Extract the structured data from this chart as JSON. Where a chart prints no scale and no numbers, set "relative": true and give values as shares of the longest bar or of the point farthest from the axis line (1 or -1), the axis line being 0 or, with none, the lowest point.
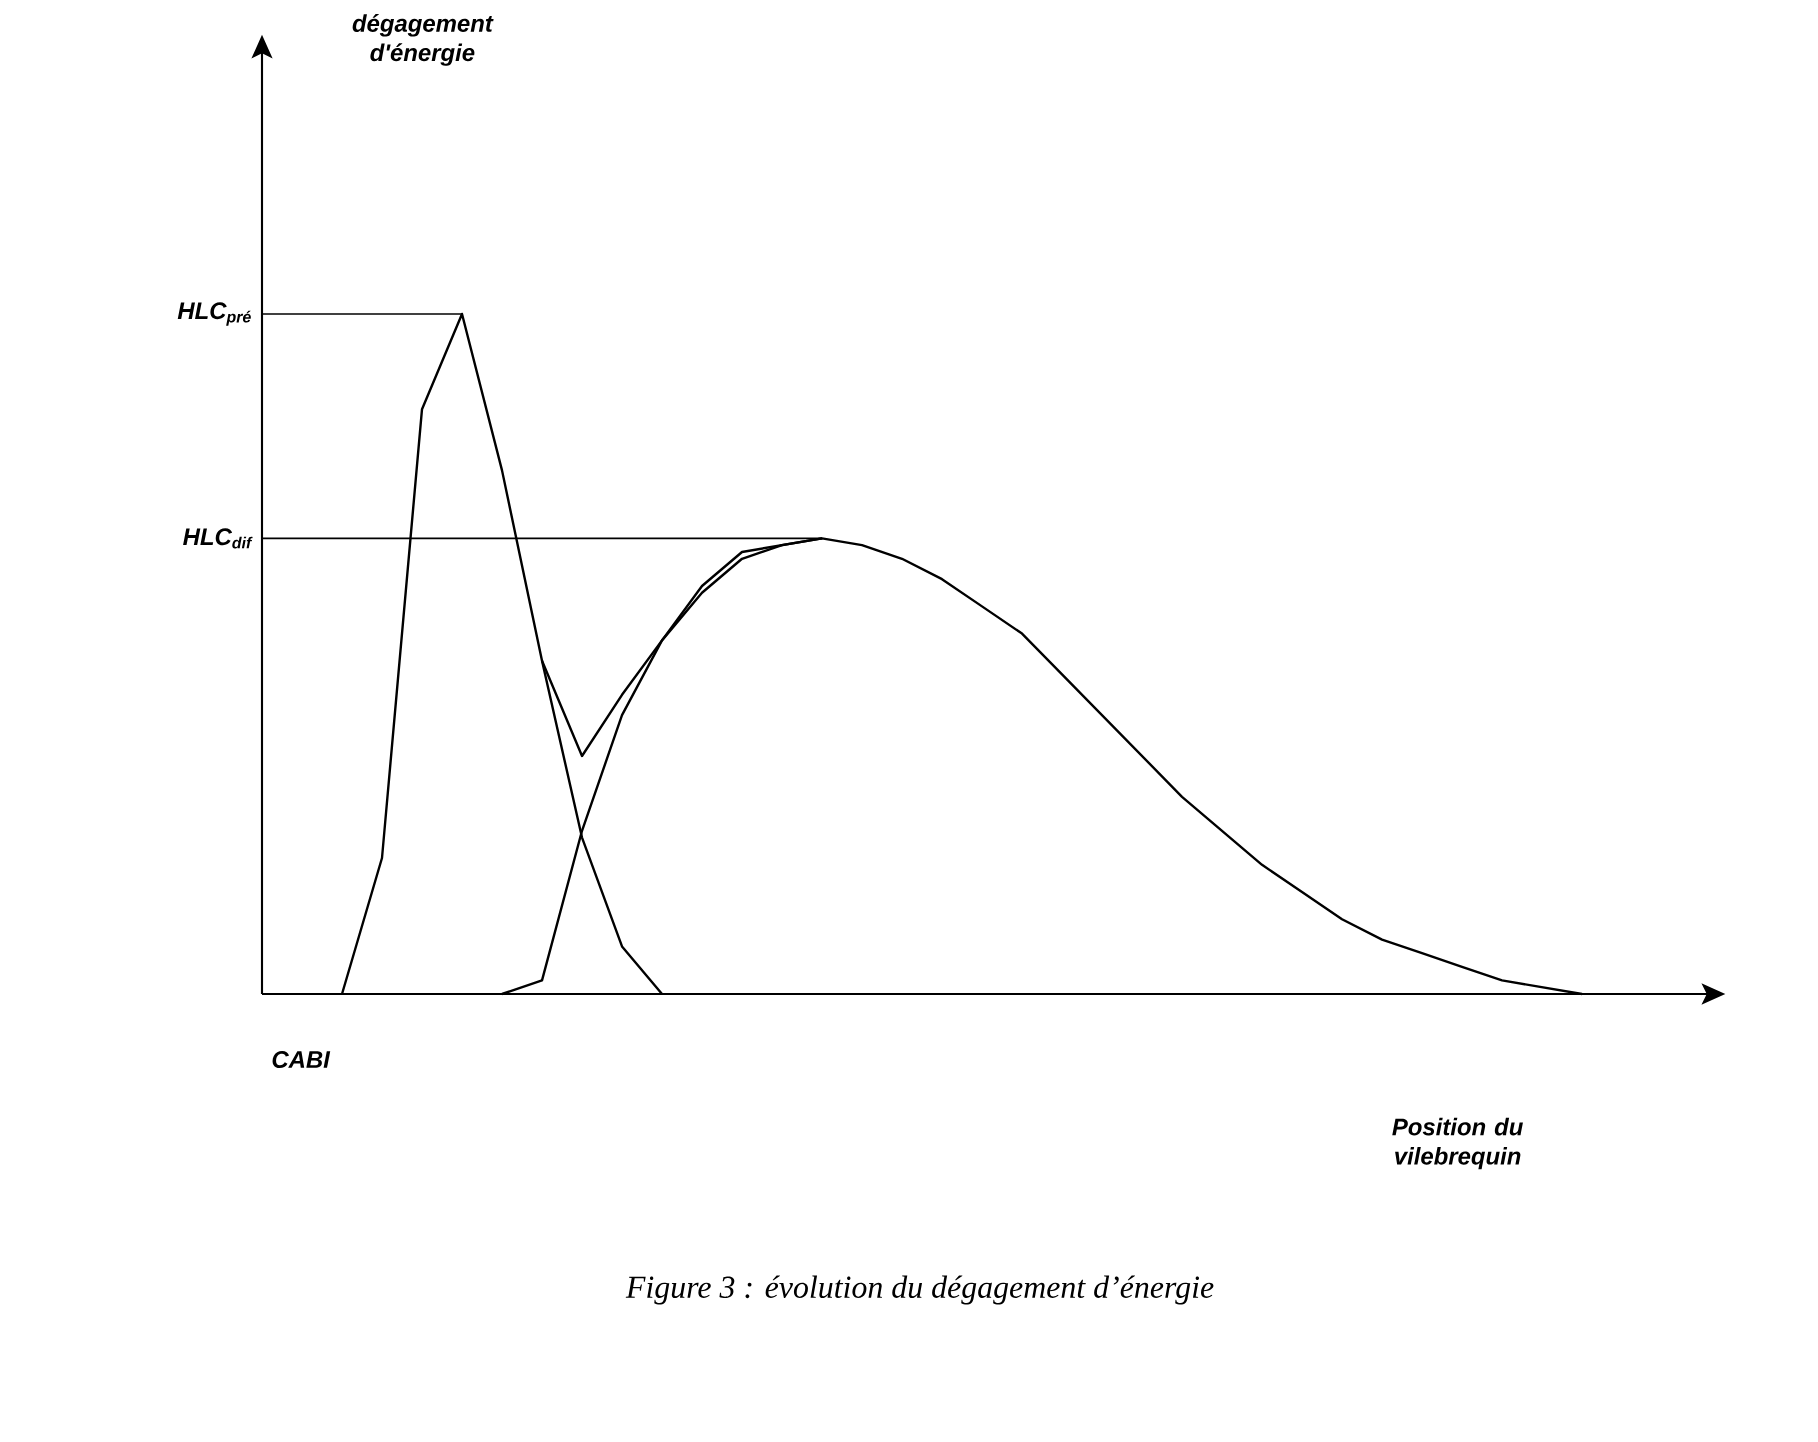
{
  "chart_data": {
    "type": "line",
    "relative": true,
    "annotations": [
      "dégagement d'énergie",
      "CABI",
      "Position du vilebrequin",
      "Figure 3 : évolution du dégagement d’énergie"
    ],
    "categories": [
      null,
      null,
      null,
      null,
      null,
      null,
      null,
      null,
      null,
      null,
      null,
      null,
      null,
      null,
      null,
      null,
      null,
      null,
      null,
      null,
      null,
      null,
      null,
      null,
      null,
      null,
      null,
      null,
      null,
      null,
      null,
      null,
      null,
      null,
      null,
      null
    ],
    "series": [
      {
        "color": "#000000",
        "values": [
          null,
          null,
          0,
          0.2,
          0.86,
          1,
          0.77,
          0.49,
          0.23,
          0.07,
          0,
          null,
          null,
          null,
          null,
          null,
          null,
          null,
          null,
          null,
          null,
          null,
          null,
          null,
          null,
          null,
          null,
          null,
          null,
          null,
          null,
          null,
          null,
          null,
          null,
          null
        ]
      },
      {
        "color": "#000000",
        "values": [
          null,
          null,
          null,
          null,
          null,
          null,
          0,
          0.02,
          0.24,
          0.41,
          0.52,
          0.59,
          0.64,
          0.66,
          0.67,
          0.66,
          0.64,
          0.61,
          0.57,
          0.53,
          0.47,
          0.41,
          0.35,
          0.29,
          0.24,
          0.19,
          0.15,
          0.11,
          0.08,
          0.06,
          0.04,
          0.02,
          0.01,
          0,
          null,
          null
        ]
      },
      {
        "color": "#000000",
        "values": [
          null,
          null,
          null,
          null,
          null,
          null,
          null,
          0.49,
          0.35,
          0.44,
          0.52,
          0.6,
          0.65,
          0.66,
          0.67,
          null,
          null,
          null,
          null,
          null,
          null,
          null,
          null,
          null,
          null,
          null,
          null,
          null,
          null,
          null,
          null,
          null,
          null,
          null,
          null,
          null
        ]
      }
    ],
    "ref_lines": [
      {
        "axis": "y",
        "value": 1,
        "label": "HLC$_{pré}$"
      },
      {
        "axis": "y",
        "value": 0.67,
        "label": "HLC$_{dif}$"
      }
    ]
  }
}
